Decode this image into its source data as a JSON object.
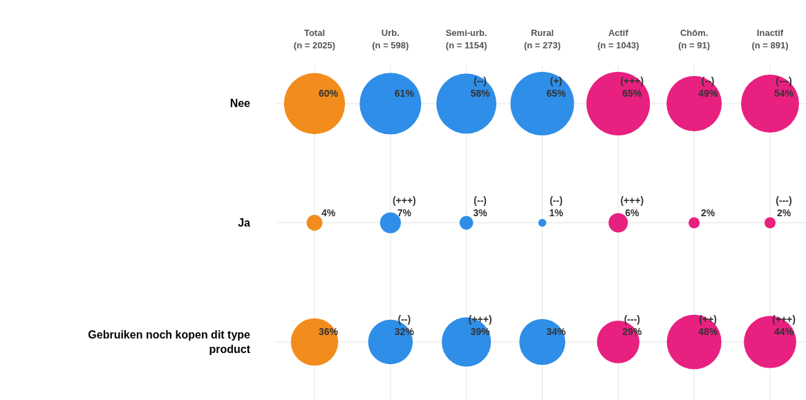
{
  "chart_data": {
    "type": "heatmap",
    "categories": [
      "Total\n(n = 2025)",
      "Urb.\n(n = 598)",
      "Semi-urb.\n(n = 1154)",
      "Rural\n(n = 273)",
      "Actif\n(n = 1043)",
      "Chôm.\n(n = 91)",
      "Inactif\n(n = 891)"
    ],
    "y_categories": [
      "Nee",
      "Ja",
      "Gebruiken noch kopen dit type product"
    ],
    "cells": [
      [
        60,
        61,
        58,
        65,
        65,
        49,
        54
      ],
      [
        4,
        7,
        3,
        1,
        6,
        2,
        2
      ],
      [
        36,
        32,
        39,
        34,
        29,
        48,
        44
      ]
    ],
    "cell_labels": [
      [
        "60%",
        "61%",
        "(--)\n58%",
        "(+)\n65%",
        "(+++)\n65%",
        "(--)\n49%",
        "(---)\n54%"
      ],
      [
        "4%",
        "(+++)\n7%",
        "(--)\n3%",
        "(--)\n1%",
        "(+++)\n6%",
        "2%",
        "(---)\n2%"
      ],
      [
        "36%",
        "(--)\n32%",
        "(+++)\n39%",
        "34%",
        "(---)\n29%",
        "(++)\n48%",
        "(+++)\n44%"
      ]
    ],
    "colors": [
      "#f28c1c",
      "#2f8ee8",
      "#2f8ee8",
      "#2f8ee8",
      "#e8207f",
      "#e8207f",
      "#e8207f"
    ],
    "grid": true
  }
}
